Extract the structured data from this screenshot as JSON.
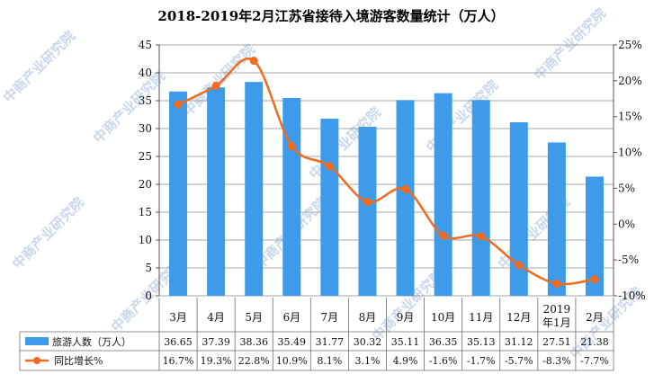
{
  "watermark": "中商产业研究院",
  "colors": {
    "bar": "#3d9be9",
    "line": "#ef6b1f",
    "grid": "#8a8a8a"
  },
  "chart_data": {
    "type": "bar",
    "title": "2018-2019年2月江苏省接待入境游客数量统计（万人）",
    "categories": [
      "3月",
      "4月",
      "5月",
      "6月",
      "7月",
      "8月",
      "9月",
      "10月",
      "11月",
      "12月",
      "2019\n年1月",
      "2月"
    ],
    "left_axis": {
      "min": 0,
      "max": 45,
      "step": 5,
      "ticks": [
        "0",
        "5",
        "10",
        "15",
        "20",
        "25",
        "30",
        "35",
        "40",
        "45"
      ]
    },
    "right_axis": {
      "min": -10,
      "max": 25,
      "step": 5,
      "ticks": [
        "-10%",
        "-5%",
        "0%",
        "5%",
        "10%",
        "15%",
        "20%",
        "25%"
      ]
    },
    "series": [
      {
        "name": "旅游人数（万人）",
        "type": "bar",
        "axis": "left",
        "values": [
          36.65,
          37.39,
          38.36,
          35.49,
          31.77,
          30.32,
          35.11,
          36.35,
          35.13,
          31.12,
          27.51,
          21.38
        ],
        "labels": [
          "36.65",
          "37.39",
          "38.36",
          "35.49",
          "31.77",
          "30.32",
          "35.11",
          "36.35",
          "35.13",
          "31.12",
          "27.51",
          "21.38"
        ]
      },
      {
        "name": "同比增长%",
        "type": "line",
        "axis": "right",
        "values": [
          16.7,
          19.3,
          22.8,
          10.9,
          8.1,
          3.1,
          4.9,
          -1.6,
          -1.7,
          -5.7,
          -8.3,
          -7.7
        ],
        "labels": [
          "16.7%",
          "19.3%",
          "22.8%",
          "10.9%",
          "8.1%",
          "3.1%",
          "4.9%",
          "-1.6%",
          "-1.7%",
          "-5.7%",
          "-8.3%",
          "-7.7%"
        ]
      }
    ],
    "grid": true,
    "legend": "bottom-table"
  }
}
